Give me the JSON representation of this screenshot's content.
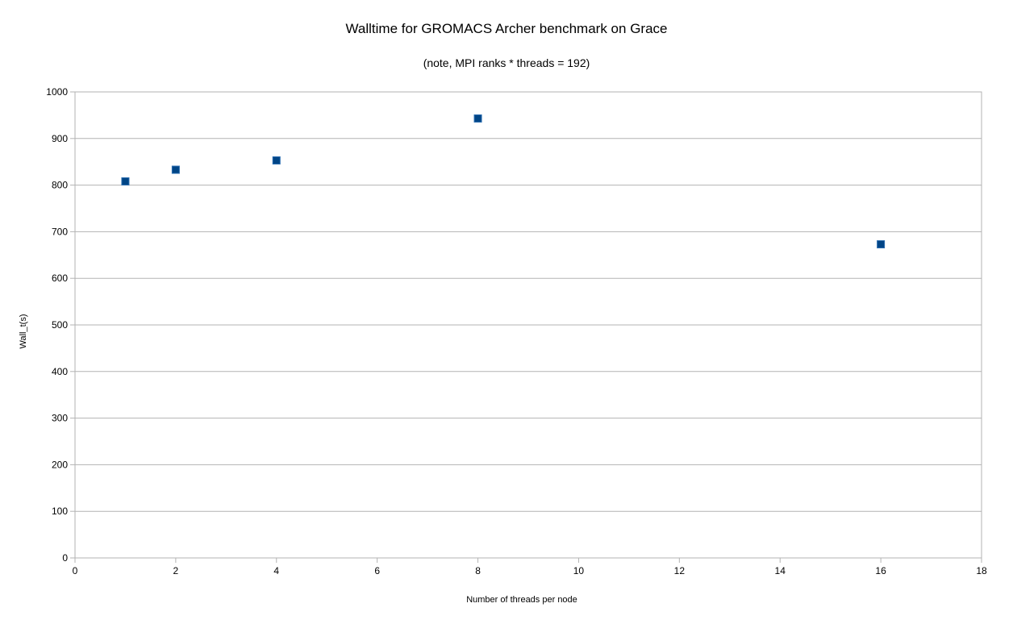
{
  "chart_data": {
    "type": "scatter",
    "title": "Walltime for GROMACS Archer benchmark on Grace",
    "subtitle": "(note, MPI ranks * threads = 192)",
    "xlabel": "Number of threads per node",
    "ylabel": "Wall_t(s)",
    "xlim": [
      0,
      18
    ],
    "ylim": [
      0,
      1000
    ],
    "xticks": [
      0,
      2,
      4,
      6,
      8,
      10,
      12,
      14,
      16,
      18
    ],
    "yticks": [
      0,
      100,
      200,
      300,
      400,
      500,
      600,
      700,
      800,
      900,
      1000
    ],
    "grid": "horizontal",
    "marker_color": "#004586",
    "series": [
      {
        "x": [
          1,
          2,
          4,
          8,
          16
        ],
        "y": [
          808,
          833,
          853,
          943,
          673
        ]
      }
    ]
  }
}
